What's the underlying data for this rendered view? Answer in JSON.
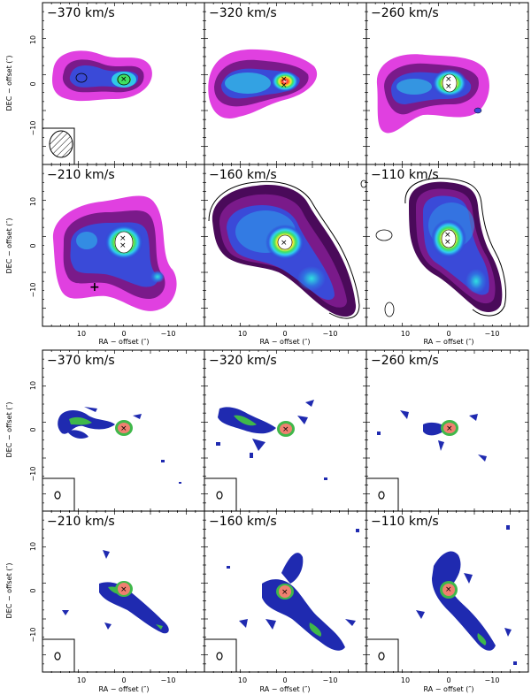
{
  "figure": {
    "description_units": "km/s",
    "top_grid": {
      "panels": [
        {
          "label": "−370 km/s",
          "row": 0,
          "col": 0
        },
        {
          "label": "−320 km/s",
          "row": 0,
          "col": 1
        },
        {
          "label": "−260 km/s",
          "row": 0,
          "col": 2
        },
        {
          "label": "−210 km/s",
          "row": 1,
          "col": 0
        },
        {
          "label": "−160 km/s",
          "row": 1,
          "col": 1
        },
        {
          "label": "−110 km/s",
          "row": 1,
          "col": 2
        }
      ],
      "ylabel": "DEC − offset (″)",
      "xlabel": "RA − offset (″)"
    },
    "bottom_grid": {
      "panels": [
        {
          "label": "−370 km/s",
          "row": 0,
          "col": 0
        },
        {
          "label": "−320 km/s",
          "row": 0,
          "col": 1
        },
        {
          "label": "−260 km/s",
          "row": 0,
          "col": 2
        },
        {
          "label": "−210 km/s",
          "row": 1,
          "col": 0
        },
        {
          "label": "−160 km/s",
          "row": 1,
          "col": 1
        },
        {
          "label": "−110 km/s",
          "row": 1,
          "col": 2
        }
      ],
      "ylabel": "DEC − offset (″)",
      "xlabel": "RA − offset (″)"
    },
    "x_ticks": [
      "10",
      "0",
      "−10"
    ],
    "y_ticks": [
      "10",
      "0",
      "−10"
    ],
    "colors": {
      "magenta": "#e040e0",
      "purple": "#7a1a8a",
      "blue": "#2a3fd0",
      "cyan": "#30d0e8",
      "green": "#3fb84a",
      "yellow": "#f0e040",
      "orange": "#f08020",
      "red": "#e03030",
      "salmon": "#f08070",
      "navy": "#1f2ab0"
    }
  }
}
